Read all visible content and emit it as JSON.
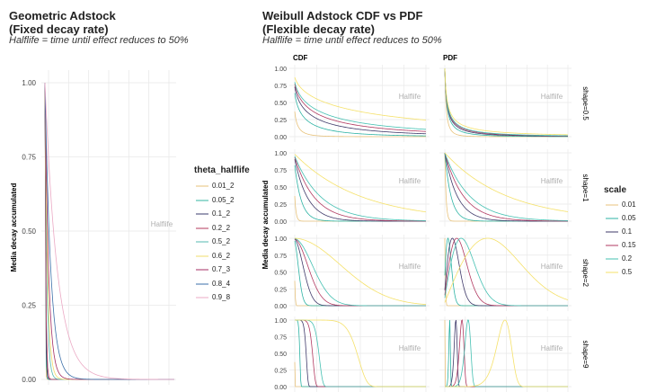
{
  "colors": {
    "geometric": [
      "#e7c27a",
      "#33b5a0",
      "#3a3b6e",
      "#b33a5e",
      "#56b8b0",
      "#f2dc6b",
      "#a42e63",
      "#3b6fa8",
      "#eba9c4"
    ],
    "weibull": [
      "#e8c37c",
      "#2db3a4",
      "#3f3a6a",
      "#b23a61",
      "#45c0b2",
      "#f5e16a"
    ],
    "grid": "#e8e8e8",
    "halflife_text": "#b0b0b0"
  },
  "geometric": {
    "title_line1": "Geometric Adstock",
    "title_line2": "(Fixed decay rate)",
    "subtitle": "Halflife = time until effect reduces to 50%",
    "ylabel": "Media decay accumulated",
    "halflife_label": "Halflife",
    "legend_title": "theta_halflife",
    "chart_data": {
      "type": "line",
      "x": [
        1,
        2,
        3,
        4,
        5,
        6,
        7,
        8,
        9,
        10,
        11,
        12,
        13,
        14,
        15,
        16,
        17,
        18,
        19,
        20,
        21,
        22,
        23,
        24,
        25,
        26,
        27,
        28,
        29,
        30,
        31,
        32,
        33,
        34,
        35,
        36,
        37,
        38,
        39,
        40,
        41,
        42,
        43,
        44,
        45,
        46,
        47,
        48,
        49,
        50,
        51,
        52,
        53,
        54,
        55,
        56,
        57,
        58,
        59,
        60,
        61,
        62,
        63,
        64,
        65,
        66,
        67,
        68,
        69,
        70,
        71,
        72,
        73,
        74,
        75,
        76,
        77,
        78,
        79,
        80,
        81,
        82,
        83,
        84,
        85,
        86,
        87,
        88,
        89,
        90,
        91,
        92,
        93,
        94,
        95,
        96,
        97,
        98,
        99,
        100
      ],
      "ylim": [
        0,
        1
      ],
      "yticks": [
        "0.00",
        "0.25",
        "0.50",
        "0.75",
        "1.00"
      ],
      "series": [
        {
          "name": "0.01_2",
          "theta": 0.01
        },
        {
          "name": "0.05_2",
          "theta": 0.05
        },
        {
          "name": "0.1_2",
          "theta": 0.1
        },
        {
          "name": "0.2_2",
          "theta": 0.2
        },
        {
          "name": "0.5_2",
          "theta": 0.5
        },
        {
          "name": "0.6_2",
          "theta": 0.6
        },
        {
          "name": "0.7_3",
          "theta": 0.7
        },
        {
          "name": "0.8_4",
          "theta": 0.8
        },
        {
          "name": "0.9_8",
          "theta": 0.9
        }
      ]
    }
  },
  "weibull": {
    "title_line1": "Weibull Adstock CDF vs PDF",
    "title_line2": "(Flexible decay rate)",
    "subtitle": "Halflife = time until effect reduces to 50%",
    "ylabel": "Media decay accumulated",
    "halflife_label": "Halflife",
    "legend_title": "scale",
    "col_labels": [
      "CDF",
      "PDF"
    ],
    "row_labels": [
      "shape=0.5",
      "shape=1",
      "shape=2",
      "shape=9"
    ],
    "yticks": [
      "0.00",
      "0.25",
      "0.50",
      "0.75",
      "1.00"
    ],
    "chart_data": {
      "type": "line",
      "x_range": [
        1,
        100
      ],
      "ylim": [
        0,
        1
      ],
      "shapes": [
        0.5,
        1,
        2,
        9
      ],
      "series": [
        {
          "name": "0.01",
          "scale": 0.01
        },
        {
          "name": "0.05",
          "scale": 0.05
        },
        {
          "name": "0.1",
          "scale": 0.1
        },
        {
          "name": "0.15",
          "scale": 0.15
        },
        {
          "name": "0.2",
          "scale": 0.2
        },
        {
          "name": "0.5",
          "scale": 0.5
        }
      ]
    }
  }
}
